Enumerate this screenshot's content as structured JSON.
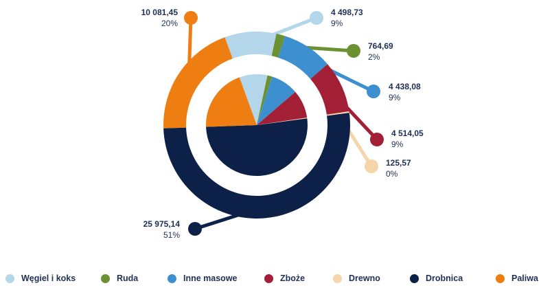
{
  "chart_data": {
    "type": "pie",
    "title": "",
    "categories": [
      "Węgiel i koks",
      "Ruda",
      "Inne masowe",
      "Zboże",
      "Drewno",
      "Drobnica",
      "Paliwa"
    ],
    "values": [
      4498.73,
      764.69,
      4438.08,
      4514.05,
      125.57,
      25975.14,
      10081.45
    ],
    "value_labels": [
      "4 498,73",
      "764,69",
      "4 438,08",
      "4 514,05",
      "125,57",
      "25 975,14",
      "10 081,45"
    ],
    "percent_labels": [
      "9%",
      "2%",
      "9%",
      "9%",
      "0%",
      "51%",
      "20%"
    ],
    "colors": [
      "#b4d6ea",
      "#6b9132",
      "#3c90cf",
      "#a31f35",
      "#f7d5ab",
      "#0d2148",
      "#ee7d12"
    ],
    "legend_position": "bottom"
  },
  "legend": [
    {
      "label": "Węgiel i koks",
      "color": "#b4d6ea"
    },
    {
      "label": "Ruda",
      "color": "#6b9132"
    },
    {
      "label": "Inne masowe",
      "color": "#3c90cf"
    },
    {
      "label": "Zboże",
      "color": "#a31f35"
    },
    {
      "label": "Drewno",
      "color": "#f7d5ab"
    },
    {
      "label": "Drobnica",
      "color": "#0d2148"
    },
    {
      "label": "Paliwa",
      "color": "#ee7d12"
    }
  ]
}
